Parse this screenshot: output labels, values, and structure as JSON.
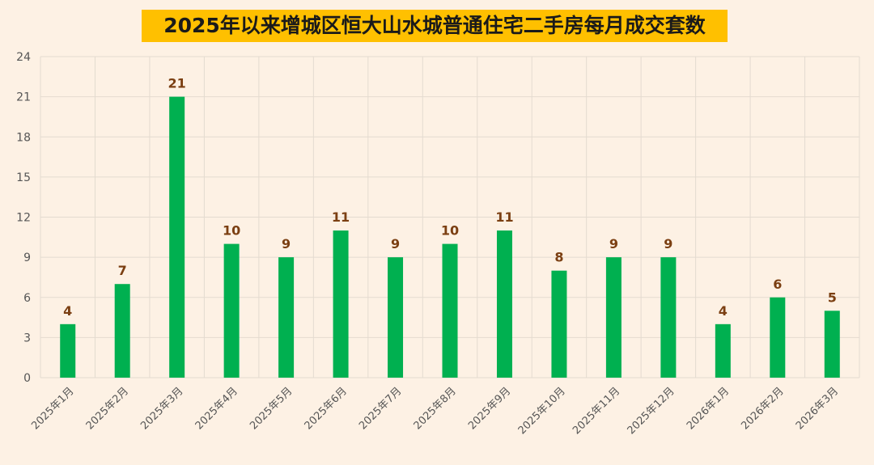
{
  "chart_data": {
    "type": "bar",
    "title": "2025年以来增城区恒大山水城普通住宅二手房每月成交套数",
    "categories": [
      "2025年1月",
      "2025年2月",
      "2025年3月",
      "2025年4月",
      "2025年5月",
      "2025年6月",
      "2025年7月",
      "2025年8月",
      "2025年9月",
      "2025年10月",
      "2025年11月",
      "2025年12月",
      "2026年1月",
      "2026年2月",
      "2026年3月"
    ],
    "values": [
      4,
      7,
      21,
      10,
      9,
      11,
      9,
      10,
      11,
      8,
      9,
      9,
      4,
      6,
      5
    ],
    "ylim": [
      0,
      24
    ],
    "yticks": [
      0,
      3,
      6,
      9,
      12,
      15,
      18,
      21,
      24
    ],
    "grid": true,
    "legend": "none",
    "colors": {
      "bar": "#00b050",
      "label": "#7b3f12",
      "title_bg": "#ffc000",
      "background": "#fdf1e4"
    }
  }
}
